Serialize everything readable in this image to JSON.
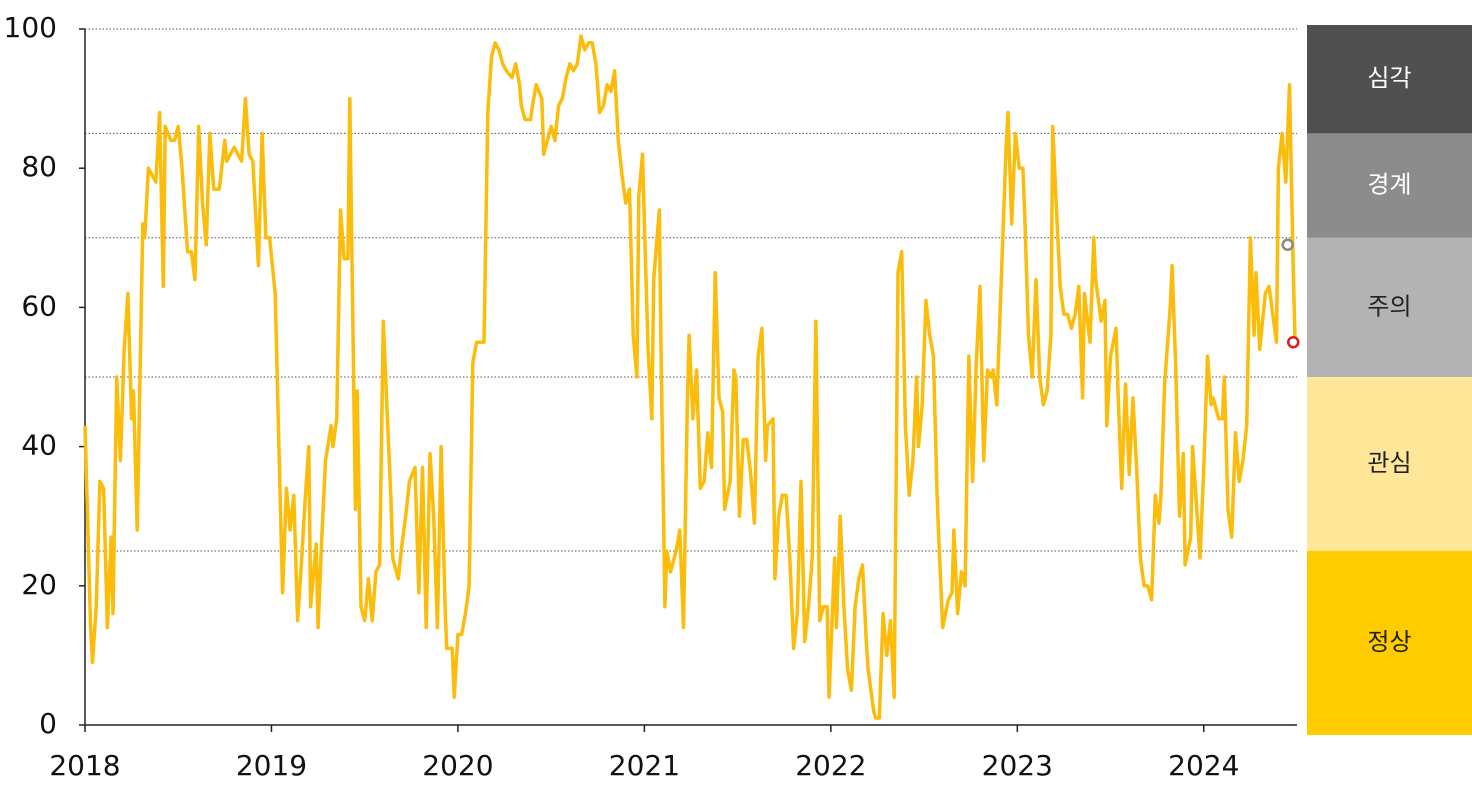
{
  "chart_data": {
    "type": "line",
    "xlim": [
      2018,
      2024.5
    ],
    "xticks": [
      2018,
      2019,
      2020,
      2021,
      2022,
      2023,
      2024
    ],
    "ylim": [
      0,
      100
    ],
    "yticks": [
      0,
      20,
      40,
      60,
      80,
      100
    ],
    "bands": [
      {
        "label": "정상",
        "from": 0,
        "to": 25,
        "color": "#ffcc00",
        "text_color": "#222222"
      },
      {
        "label": "관심",
        "from": 25,
        "to": 50,
        "color": "#ffe699",
        "text_color": "#222222"
      },
      {
        "label": "주의",
        "from": 50,
        "to": 70,
        "color": "#b3b3b3",
        "text_color": "#222222"
      },
      {
        "label": "경계",
        "from": 70,
        "to": 85,
        "color": "#8c8c8c",
        "text_color": "#ffffff"
      },
      {
        "label": "심각",
        "from": 85,
        "to": 100,
        "color": "#505050",
        "text_color": "#ffffff"
      }
    ],
    "x": [
      2018.0,
      2018.03,
      2018.04,
      2018.06,
      2018.08,
      2018.1,
      2018.12,
      2018.14,
      2018.15,
      2018.17,
      2018.19,
      2018.21,
      2018.23,
      2018.25,
      2018.26,
      2018.28,
      2018.31,
      2018.32,
      2018.34,
      2018.38,
      2018.4,
      2018.42,
      2018.43,
      2018.46,
      2018.48,
      2018.5,
      2018.52,
      2018.55,
      2018.57,
      2018.59,
      2018.61,
      2018.63,
      2018.65,
      2018.67,
      2018.69,
      2018.72,
      2018.75,
      2018.76,
      2018.8,
      2018.84,
      2018.86,
      2018.88,
      2018.9,
      2018.93,
      2018.95,
      2018.97,
      2018.99,
      2019.02,
      2019.04,
      2019.06,
      2019.08,
      2019.1,
      2019.12,
      2019.14,
      2019.16,
      2019.18,
      2019.2,
      2019.21,
      2019.24,
      2019.25,
      2019.27,
      2019.29,
      2019.32,
      2019.33,
      2019.35,
      2019.37,
      2019.39,
      2019.41,
      2019.42,
      2019.45,
      2019.46,
      2019.48,
      2019.5,
      2019.52,
      2019.54,
      2019.56,
      2019.58,
      2019.6,
      2019.62,
      2019.64,
      2019.65,
      2019.68,
      2019.7,
      2019.72,
      2019.74,
      2019.77,
      2019.79,
      2019.81,
      2019.83,
      2019.85,
      2019.87,
      2019.89,
      2019.91,
      2019.93,
      2019.94,
      2019.97,
      2019.98,
      2020.0,
      2020.02,
      2020.04,
      2020.06,
      2020.08,
      2020.1,
      2020.12,
      2020.14,
      2020.16,
      2020.18,
      2020.2,
      2020.22,
      2020.24,
      2020.26,
      2020.29,
      2020.31,
      2020.33,
      2020.34,
      2020.36,
      2020.39,
      2020.4,
      2020.42,
      2020.45,
      2020.46,
      2020.48,
      2020.5,
      2020.52,
      2020.54,
      2020.56,
      2020.58,
      2020.6,
      2020.62,
      2020.64,
      2020.66,
      2020.68,
      2020.7,
      2020.72,
      2020.74,
      2020.76,
      2020.78,
      2020.8,
      2020.82,
      2020.84,
      2020.86,
      2020.88,
      2020.9,
      2020.92,
      2020.94,
      2020.96,
      2020.97,
      2020.99,
      2021.0,
      2021.02,
      2021.04,
      2021.05,
      2021.08,
      2021.09,
      2021.11,
      2021.12,
      2021.14,
      2021.17,
      2021.19,
      2021.21,
      2021.23,
      2021.24,
      2021.26,
      2021.28,
      2021.3,
      2021.32,
      2021.34,
      2021.36,
      2021.38,
      2021.4,
      2021.42,
      2021.43,
      2021.46,
      2021.48,
      2021.49,
      2021.51,
      2021.53,
      2021.55,
      2021.57,
      2021.59,
      2021.61,
      2021.63,
      2021.65,
      2021.66,
      2021.69,
      2021.7,
      2021.72,
      2021.74,
      2021.76,
      2021.78,
      2021.8,
      2021.82,
      2021.84,
      2021.86,
      2021.88,
      2021.9,
      2021.92,
      2021.94,
      2021.96,
      2021.98,
      2021.99,
      2022.02,
      2022.03,
      2022.05,
      2022.07,
      2022.09,
      2022.11,
      2022.13,
      2022.15,
      2022.17,
      2022.19,
      2022.2,
      2022.23,
      2022.24,
      2022.26,
      2022.28,
      2022.3,
      2022.32,
      2022.34,
      2022.36,
      2022.38,
      2022.4,
      2022.42,
      2022.44,
      2022.46,
      2022.47,
      2022.49,
      2022.51,
      2022.53,
      2022.55,
      2022.57,
      2022.58,
      2022.6,
      2022.63,
      2022.65,
      2022.66,
      2022.68,
      2022.7,
      2022.72,
      2022.74,
      2022.76,
      2022.78,
      2022.8,
      2022.82,
      2022.84,
      2022.86,
      2022.87,
      2022.89,
      2022.91,
      2022.94,
      2022.95,
      2022.97,
      2022.99,
      2023.01,
      2023.03,
      2023.04,
      2023.06,
      2023.08,
      2023.1,
      2023.12,
      2023.14,
      2023.16,
      2023.18,
      2023.19,
      2023.21,
      2023.23,
      2023.25,
      2023.27,
      2023.29,
      2023.31,
      2023.33,
      2023.35,
      2023.36,
      2023.39,
      2023.41,
      2023.42,
      2023.45,
      2023.47,
      2023.48,
      2023.5,
      2023.53,
      2023.54,
      2023.56,
      2023.58,
      2023.6,
      2023.62,
      2023.64,
      2023.66,
      2023.68,
      2023.7,
      2023.72,
      2023.74,
      2023.76,
      2023.77,
      2023.79,
      2023.82,
      2023.83,
      2023.85,
      2023.87,
      2023.89,
      2023.9,
      2023.93,
      2023.94,
      2023.96,
      2023.98,
      2024.0,
      2024.02,
      2024.04,
      2024.05,
      2024.08,
      2024.1,
      2024.11,
      2024.13,
      2024.15,
      2024.17,
      2024.19,
      2024.21,
      2024.23,
      2024.25,
      2024.27,
      2024.28,
      2024.3,
      2024.33,
      2024.35,
      2024.36,
      2024.39,
      2024.4,
      2024.42,
      2024.44,
      2024.46,
      2024.48,
      2024.49
    ],
    "series": [
      {
        "color": "#fbbc0c",
        "values": [
          43,
          14,
          9,
          17,
          35,
          34,
          14,
          27,
          16,
          50,
          38,
          54,
          62,
          44,
          48,
          28,
          72,
          70,
          80,
          78,
          88,
          63,
          86,
          84,
          84,
          86,
          80,
          68,
          68,
          64,
          86,
          75,
          69,
          85,
          77,
          77,
          84,
          81,
          83,
          81,
          90,
          82,
          81,
          66,
          85,
          70,
          70,
          62,
          40,
          19,
          34,
          28,
          33,
          15,
          23,
          32,
          40,
          17,
          26,
          14,
          27,
          38,
          43,
          40,
          44,
          74,
          67,
          67,
          90,
          31,
          48,
          17,
          15,
          21,
          15,
          22,
          23,
          58,
          45,
          33,
          24,
          21,
          26,
          30,
          35,
          37,
          19,
          37,
          14,
          39,
          30,
          14,
          40,
          18,
          11,
          11,
          4,
          13,
          13,
          16,
          20,
          52,
          55,
          55,
          55,
          88,
          96,
          98,
          97,
          95,
          94,
          93,
          95,
          92,
          89,
          87,
          87,
          89,
          92,
          90,
          82,
          84,
          86,
          84,
          89,
          90,
          93,
          95,
          94,
          95,
          99,
          97,
          98,
          98,
          95,
          88,
          89,
          92,
          91,
          94,
          84,
          79,
          75,
          77,
          56,
          50,
          76,
          82,
          72,
          54,
          44,
          64,
          74,
          52,
          17,
          25,
          22,
          25,
          28,
          14,
          46,
          56,
          44,
          51,
          34,
          35,
          42,
          37,
          65,
          47,
          45,
          31,
          35,
          51,
          50,
          30,
          41,
          41,
          36,
          29,
          53,
          57,
          38,
          43,
          44,
          21,
          30,
          33,
          33,
          24,
          11,
          16,
          35,
          12,
          17,
          24,
          58,
          15,
          17,
          17,
          4,
          24,
          14,
          30,
          17,
          8,
          5,
          17,
          21,
          23,
          12,
          8,
          2,
          1,
          1,
          16,
          10,
          15,
          4,
          65,
          68,
          43,
          33,
          38,
          50,
          40,
          46,
          61,
          56,
          53,
          33,
          26,
          14,
          18,
          19,
          28,
          16,
          22,
          20,
          53,
          35,
          52,
          63,
          38,
          51,
          50,
          51,
          46,
          61,
          83,
          88,
          72,
          85,
          80,
          80,
          73,
          56,
          50,
          64,
          50,
          46,
          48,
          56,
          86,
          74,
          63,
          59,
          59,
          57,
          59,
          63,
          47,
          62,
          55,
          70,
          64,
          58,
          61,
          43,
          53,
          57,
          48,
          34,
          49,
          36,
          47,
          37,
          24,
          20,
          20,
          18,
          33,
          29,
          33,
          49,
          60,
          66,
          51,
          30,
          39,
          23,
          27,
          40,
          32,
          24,
          37,
          53,
          46,
          47,
          44,
          44,
          50,
          31,
          27,
          42,
          35,
          38,
          43,
          70,
          56,
          65,
          54,
          62,
          63,
          61,
          55,
          80,
          85,
          78,
          92,
          65,
          55
        ]
      }
    ],
    "markers": [
      {
        "x": 2024.45,
        "y": 69,
        "color": "#888888"
      },
      {
        "x": 2024.48,
        "y": 55,
        "color": "#e0191d"
      }
    ]
  }
}
